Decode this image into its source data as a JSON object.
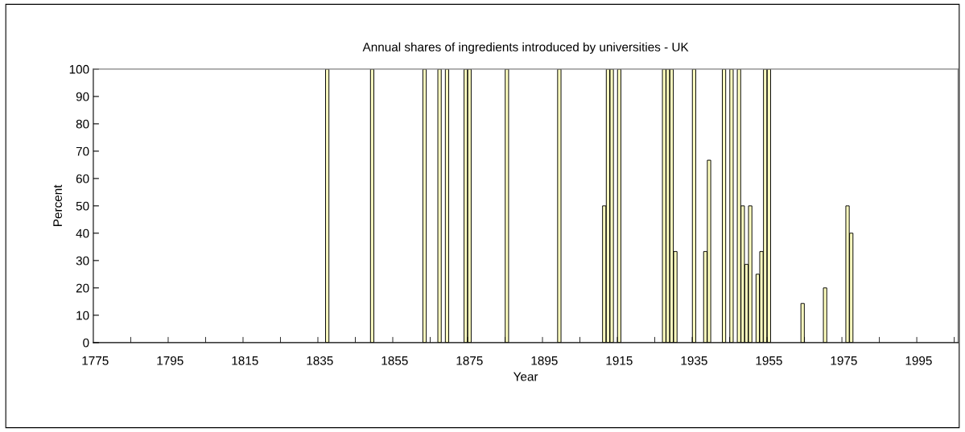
{
  "chart_data": {
    "type": "bar",
    "title": "Annual shares of ingredients introduced by universities - UK",
    "xlabel": "Year",
    "ylabel": "Percent",
    "x": [
      1837,
      1849,
      1863,
      1867,
      1869,
      1874,
      1875,
      1885,
      1899,
      1911,
      1912,
      1913,
      1915,
      1927,
      1928,
      1929,
      1930,
      1935,
      1938,
      1939,
      1943,
      1945,
      1947,
      1948,
      1949,
      1950,
      1952,
      1953,
      1954,
      1955,
      1964,
      1970,
      1976,
      1977
    ],
    "values": [
      100,
      100,
      100,
      100,
      100,
      100,
      100,
      100,
      100,
      50,
      100,
      100,
      100,
      100,
      100,
      100,
      33.3,
      100,
      33.3,
      66.7,
      100,
      100,
      100,
      50,
      28.6,
      50,
      25,
      33.3,
      100,
      100,
      14.3,
      20,
      50,
      40
    ],
    "color": "#ffffc0",
    "xlim": [
      1774.5,
      2005.5
    ],
    "xticks": [
      {
        "value": 1775,
        "label": "1775"
      },
      {
        "value": 1784.5,
        "label": null
      },
      {
        "value": 1794.5,
        "label": null
      },
      {
        "value": 1795,
        "label": "1795"
      },
      {
        "value": 1804.5,
        "label": null
      },
      {
        "value": 1814.5,
        "label": null
      },
      {
        "value": 1815,
        "label": "1815"
      },
      {
        "value": 1824.5,
        "label": null
      },
      {
        "value": 1834.5,
        "label": null
      },
      {
        "value": 1835,
        "label": "1835"
      },
      {
        "value": 1844.5,
        "label": null
      },
      {
        "value": 1854.5,
        "label": null
      },
      {
        "value": 1855,
        "label": "1855"
      },
      {
        "value": 1864.5,
        "label": null
      },
      {
        "value": 1874.5,
        "label": null
      },
      {
        "value": 1875,
        "label": "1875"
      },
      {
        "value": 1884.5,
        "label": null
      },
      {
        "value": 1894.5,
        "label": null
      },
      {
        "value": 1895,
        "label": "1895"
      },
      {
        "value": 1904.5,
        "label": null
      },
      {
        "value": 1914.5,
        "label": null
      },
      {
        "value": 1915,
        "label": "1915"
      },
      {
        "value": 1924.5,
        "label": null
      },
      {
        "value": 1934.5,
        "label": null
      },
      {
        "value": 1935,
        "label": "1935"
      },
      {
        "value": 1944.5,
        "label": null
      },
      {
        "value": 1954.5,
        "label": null
      },
      {
        "value": 1955,
        "label": "1955"
      },
      {
        "value": 1964.5,
        "label": null
      },
      {
        "value": 1974.5,
        "label": null
      },
      {
        "value": 1975,
        "label": "1975"
      },
      {
        "value": 1984.5,
        "label": null
      },
      {
        "value": 1994.5,
        "label": null
      },
      {
        "value": 1995,
        "label": "1995"
      },
      {
        "value": 2004.5,
        "label": null
      }
    ],
    "ylim": [
      0,
      100
    ],
    "yticks": [
      0,
      10,
      20,
      30,
      40,
      50,
      60,
      70,
      80,
      90,
      100
    ],
    "grid": false,
    "legend": false
  }
}
